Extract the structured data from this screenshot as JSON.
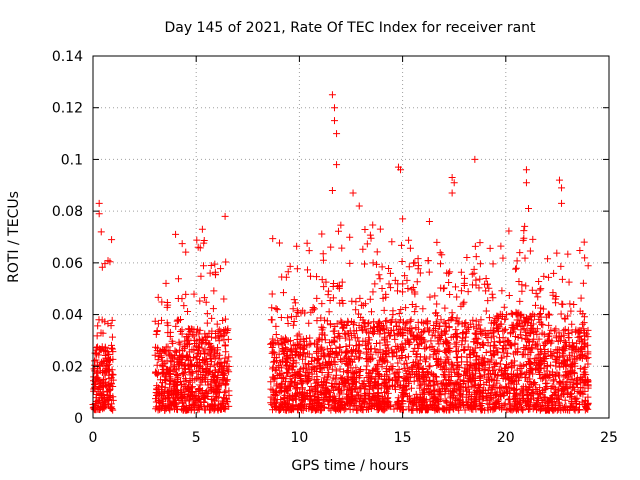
{
  "chart_data": {
    "type": "scatter",
    "title": "Day 145 of 2021, Rate Of TEC Index for receiver rant",
    "xlabel": "GPS time / hours",
    "ylabel": "ROTI / TECUs",
    "xlim": [
      0,
      25
    ],
    "ylim": [
      0,
      0.14
    ],
    "xticks": [
      "0",
      "5",
      "10",
      "15",
      "20",
      "25"
    ],
    "yticks": [
      "0",
      "0.02",
      "0.04",
      "0.06",
      "0.08",
      "0.1",
      "0.12",
      "0.14"
    ],
    "grid": true,
    "marker": "+",
    "color": "#ff0000",
    "outliers": [
      {
        "x": 0.3,
        "y": 0.083
      },
      {
        "x": 0.3,
        "y": 0.079
      },
      {
        "x": 0.4,
        "y": 0.072
      },
      {
        "x": 0.9,
        "y": 0.069
      },
      {
        "x": 4.0,
        "y": 0.071
      },
      {
        "x": 5.3,
        "y": 0.073
      },
      {
        "x": 6.4,
        "y": 0.078
      },
      {
        "x": 11.6,
        "y": 0.125
      },
      {
        "x": 11.7,
        "y": 0.12
      },
      {
        "x": 11.7,
        "y": 0.115
      },
      {
        "x": 11.8,
        "y": 0.11
      },
      {
        "x": 11.8,
        "y": 0.098
      },
      {
        "x": 11.6,
        "y": 0.088
      },
      {
        "x": 12.6,
        "y": 0.087
      },
      {
        "x": 12.9,
        "y": 0.082
      },
      {
        "x": 14.8,
        "y": 0.097
      },
      {
        "x": 14.9,
        "y": 0.096
      },
      {
        "x": 15.0,
        "y": 0.077
      },
      {
        "x": 16.3,
        "y": 0.076
      },
      {
        "x": 17.4,
        "y": 0.093
      },
      {
        "x": 17.5,
        "y": 0.091
      },
      {
        "x": 17.4,
        "y": 0.087
      },
      {
        "x": 18.5,
        "y": 0.1
      },
      {
        "x": 21.0,
        "y": 0.096
      },
      {
        "x": 21.0,
        "y": 0.091
      },
      {
        "x": 21.1,
        "y": 0.081
      },
      {
        "x": 22.6,
        "y": 0.092
      },
      {
        "x": 22.7,
        "y": 0.089
      },
      {
        "x": 22.7,
        "y": 0.083
      },
      {
        "x": 23.8,
        "y": 0.068
      }
    ],
    "segments": [
      {
        "x_start": 0.0,
        "x_end": 1.0,
        "typical_max": 0.035,
        "peak": 0.065
      },
      {
        "x_start": 3.0,
        "x_end": 4.2,
        "typical_max": 0.035,
        "peak": 0.055
      },
      {
        "x_start": 4.2,
        "x_end": 6.6,
        "typical_max": 0.045,
        "peak": 0.07
      },
      {
        "x_start": 8.6,
        "x_end": 11.0,
        "typical_max": 0.04,
        "peak": 0.07
      },
      {
        "x_start": 11.0,
        "x_end": 14.0,
        "typical_max": 0.05,
        "peak": 0.075
      },
      {
        "x_start": 14.0,
        "x_end": 19.5,
        "typical_max": 0.05,
        "peak": 0.07
      },
      {
        "x_start": 19.5,
        "x_end": 22.0,
        "typical_max": 0.055,
        "peak": 0.075
      },
      {
        "x_start": 22.0,
        "x_end": 24.0,
        "typical_max": 0.045,
        "peak": 0.065
      }
    ]
  }
}
